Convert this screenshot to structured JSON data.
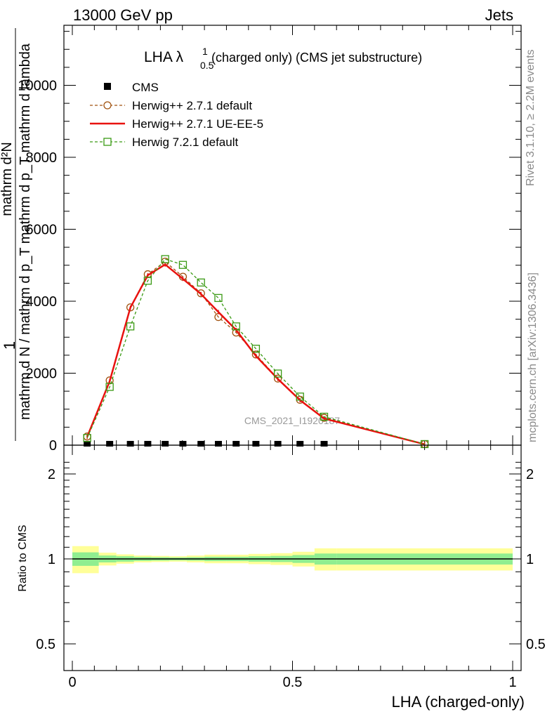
{
  "header": {
    "left": "13000 GeV pp",
    "right": "Jets"
  },
  "side": {
    "rivet": "Rivet 3.1.10, ≥ 2.2M events",
    "mcplots": "mcplots.cern.ch [arXiv:1306.3436]"
  },
  "watermark": "CMS_2021_I1920187",
  "chart_data": [
    {
      "type": "line",
      "title": "LHA λ",
      "title_sup": "1",
      "title_sub": "0.5",
      "title_rest": "(charged only) (CMS jet substructure)",
      "xlabel": "",
      "ylabel_top": "1",
      "ylabel_num": "mathrm d²N",
      "ylabel_den": "mathrm d N / mathrm d p_T mathrm d p_T mathrm d lambda",
      "xlim": [
        0,
        1
      ],
      "ylim": [
        0,
        12000
      ],
      "yticks": [
        0,
        2000,
        4000,
        6000,
        8000,
        10000
      ],
      "ytick_labels": [
        "0",
        "2000",
        "4000",
        "6000",
        "8000",
        "10000"
      ],
      "legend_position": "top-left",
      "series": [
        {
          "name": "CMS",
          "color": "#000000",
          "marker": "filled-square",
          "x": [
            0.0337,
            0.0848,
            0.1318,
            0.1713,
            0.2108,
            0.2511,
            0.2922,
            0.3317,
            0.372,
            0.4169,
            0.4667,
            0.5171,
            0.5718
          ],
          "y": [
            1,
            1,
            1,
            1,
            1,
            1,
            1,
            1,
            1,
            1,
            1,
            1,
            1
          ]
        },
        {
          "name": "Herwig++ 2.7.1 default",
          "color": "#a0520f",
          "marker": "open-circle",
          "dash": "4,3",
          "x": [
            0.0337,
            0.0848,
            0.1318,
            0.1713,
            0.2108,
            0.2511,
            0.2922,
            0.3317,
            0.372,
            0.4169,
            0.4667,
            0.5171,
            0.5718,
            0.8
          ],
          "y": [
            240,
            1800,
            3830,
            4750,
            5100,
            4680,
            4220,
            3560,
            3130,
            2520,
            1850,
            1260,
            760,
            30
          ]
        },
        {
          "name": "Herwig++ 2.7.1 UE-EE-5",
          "color": "#e8120f",
          "marker": "none",
          "dash": "",
          "x": [
            0.0337,
            0.0848,
            0.1318,
            0.1713,
            0.2108,
            0.2511,
            0.2922,
            0.3317,
            0.372,
            0.4169,
            0.4667,
            0.5171,
            0.5718,
            0.8
          ],
          "y": [
            230,
            1780,
            3820,
            4720,
            5020,
            4620,
            4200,
            3700,
            3200,
            2480,
            1840,
            1250,
            740,
            25
          ]
        },
        {
          "name": "Herwig 7.2.1 default",
          "color": "#3a9a14",
          "marker": "open-square",
          "dash": "4,3",
          "x": [
            0.0337,
            0.0848,
            0.1318,
            0.1713,
            0.2108,
            0.2511,
            0.2922,
            0.3317,
            0.372,
            0.4169,
            0.4667,
            0.5171,
            0.5718,
            0.8
          ],
          "y": [
            200,
            1620,
            3300,
            4570,
            5170,
            5010,
            4520,
            4090,
            3300,
            2680,
            1990,
            1350,
            790,
            30
          ]
        }
      ]
    },
    {
      "type": "area",
      "ylabel": "Ratio to CMS",
      "xlabel": "LHA (charged-only)",
      "xlim": [
        0,
        1
      ],
      "ylim": [
        0.4,
        2.3
      ],
      "xticks": [
        0,
        0.5,
        1
      ],
      "xtick_labels": [
        "0",
        "0.5",
        "1"
      ],
      "yticks": [
        0.5,
        1,
        2
      ],
      "ytick_labels": [
        "0.5",
        "1",
        "2"
      ],
      "bins": [
        0,
        0.06,
        0.1,
        0.14,
        0.18,
        0.22,
        0.26,
        0.3,
        0.35,
        0.4,
        0.45,
        0.5,
        0.55,
        0.6,
        1.0
      ],
      "inner_band": [
        [
          0.945,
          1.055
        ],
        [
          0.972,
          1.028
        ],
        [
          0.978,
          1.022
        ],
        [
          0.984,
          1.016
        ],
        [
          0.986,
          1.014
        ],
        [
          0.988,
          1.012
        ],
        [
          0.986,
          1.014
        ],
        [
          0.982,
          1.018
        ],
        [
          0.982,
          1.018
        ],
        [
          0.978,
          1.022
        ],
        [
          0.975,
          1.025
        ],
        [
          0.968,
          1.032
        ],
        [
          0.955,
          1.045
        ],
        [
          0.955,
          1.045
        ]
      ],
      "outer_band": [
        [
          0.89,
          1.11
        ],
        [
          0.948,
          1.052
        ],
        [
          0.962,
          1.038
        ],
        [
          0.972,
          1.028
        ],
        [
          0.975,
          1.025
        ],
        [
          0.978,
          1.022
        ],
        [
          0.972,
          1.028
        ],
        [
          0.965,
          1.035
        ],
        [
          0.965,
          1.035
        ],
        [
          0.958,
          1.042
        ],
        [
          0.952,
          1.048
        ],
        [
          0.94,
          1.06
        ],
        [
          0.91,
          1.09
        ],
        [
          0.91,
          1.09
        ]
      ],
      "inner_color": "#90ee90",
      "outer_color": "#ffff99",
      "reference": 1
    }
  ]
}
